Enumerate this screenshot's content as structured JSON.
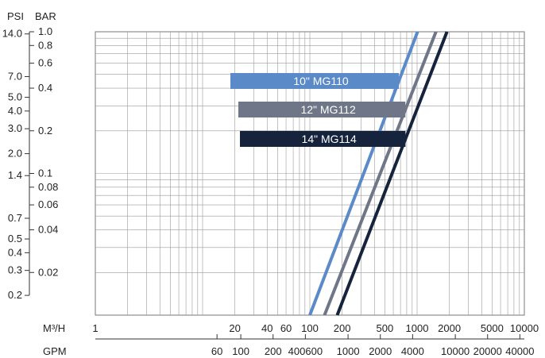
{
  "chart_data": {
    "type": "line",
    "x_scale": "log",
    "y_scale": "log",
    "grid": true,
    "axes": {
      "x_primary": {
        "unit": "M³/H",
        "range": [
          1,
          10000
        ],
        "ticks": [
          "1",
          "20",
          "40",
          "60",
          "100",
          "200",
          "500",
          "1000",
          "2000",
          "5000",
          "10000"
        ]
      },
      "x_secondary": {
        "unit": "GPM",
        "ticks": [
          "60",
          "100",
          "200",
          "400600",
          "1000",
          "2000",
          "4000",
          "10000",
          "20000",
          "40000"
        ]
      },
      "y_primary": {
        "unit": "PSI",
        "ticks": [
          "14.0",
          "7.0",
          "5.0",
          "4.0",
          "3.0",
          "2.0",
          "1.4",
          "0.7",
          "0.5",
          "0.4",
          "0.3",
          "0.2"
        ]
      },
      "y_secondary": {
        "unit": "BAR",
        "range": [
          0.01,
          1.0
        ],
        "ticks": [
          "1.0",
          "0.8",
          "0.6",
          "0.4",
          "0.2",
          "0.1",
          "0.08",
          "0.06",
          "0.04",
          "0.02"
        ]
      }
    },
    "series": [
      {
        "name": "10\" MG110",
        "color": "#5b8ac8",
        "x": [
          100,
          1010
        ],
        "y": [
          0.01,
          1.0
        ]
      },
      {
        "name": "12\" MG112",
        "color": "#6e7687",
        "x": [
          137,
          1500
        ],
        "y": [
          0.01,
          1.0
        ]
      },
      {
        "name": "14\" MG114",
        "color": "#15233d",
        "x": [
          180,
          1900
        ],
        "y": [
          0.01,
          1.0
        ]
      }
    ]
  }
}
